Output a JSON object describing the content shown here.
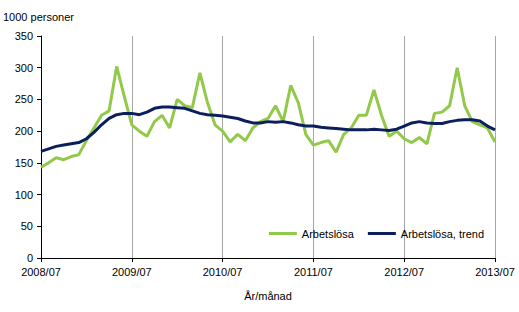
{
  "chart_data": {
    "type": "line",
    "y_label": "1000 personer",
    "x_label": "År/månad",
    "categories": [
      "2008/07",
      null,
      null,
      null,
      null,
      null,
      null,
      null,
      null,
      null,
      null,
      null,
      "2009/07",
      null,
      null,
      null,
      null,
      null,
      null,
      null,
      null,
      null,
      null,
      null,
      "2010/07",
      null,
      null,
      null,
      null,
      null,
      null,
      null,
      null,
      null,
      null,
      null,
      "2011/07",
      null,
      null,
      null,
      null,
      null,
      null,
      null,
      null,
      null,
      null,
      null,
      "2012/07",
      null,
      null,
      null,
      null,
      null,
      null,
      null,
      null,
      null,
      null,
      null,
      "2013/07"
    ],
    "series": [
      {
        "name": "Arbetslösa",
        "color": "#92c94a",
        "values": [
          143,
          150,
          158,
          155,
          160,
          163,
          185,
          205,
          225,
          232,
          302,
          255,
          210,
          200,
          192,
          215,
          225,
          205,
          250,
          240,
          237,
          292,
          245,
          210,
          200,
          183,
          195,
          185,
          205,
          215,
          220,
          240,
          215,
          272,
          245,
          195,
          178,
          182,
          185,
          167,
          195,
          205,
          225,
          225,
          265,
          225,
          192,
          200,
          188,
          182,
          190,
          180,
          228,
          230,
          240,
          300,
          240,
          215,
          210,
          205,
          183
        ]
      },
      {
        "name": "Arbetslösa, trend",
        "color": "#0b1f5c",
        "values": [
          168,
          172,
          176,
          178,
          180,
          182,
          188,
          198,
          210,
          220,
          226,
          228,
          228,
          226,
          230,
          236,
          238,
          238,
          237,
          236,
          232,
          228,
          226,
          225,
          224,
          222,
          220,
          216,
          213,
          213,
          215,
          214,
          215,
          213,
          210,
          208,
          208,
          206,
          205,
          204,
          203,
          202,
          202,
          202,
          203,
          202,
          201,
          203,
          208,
          213,
          215,
          213,
          212,
          212,
          215,
          217,
          218,
          218,
          216,
          208,
          202
        ]
      }
    ],
    "ylim": [
      0,
      350
    ],
    "yticks": [
      0,
      50,
      100,
      150,
      200,
      250,
      300,
      350
    ],
    "grid": true,
    "legend": "lower right"
  }
}
